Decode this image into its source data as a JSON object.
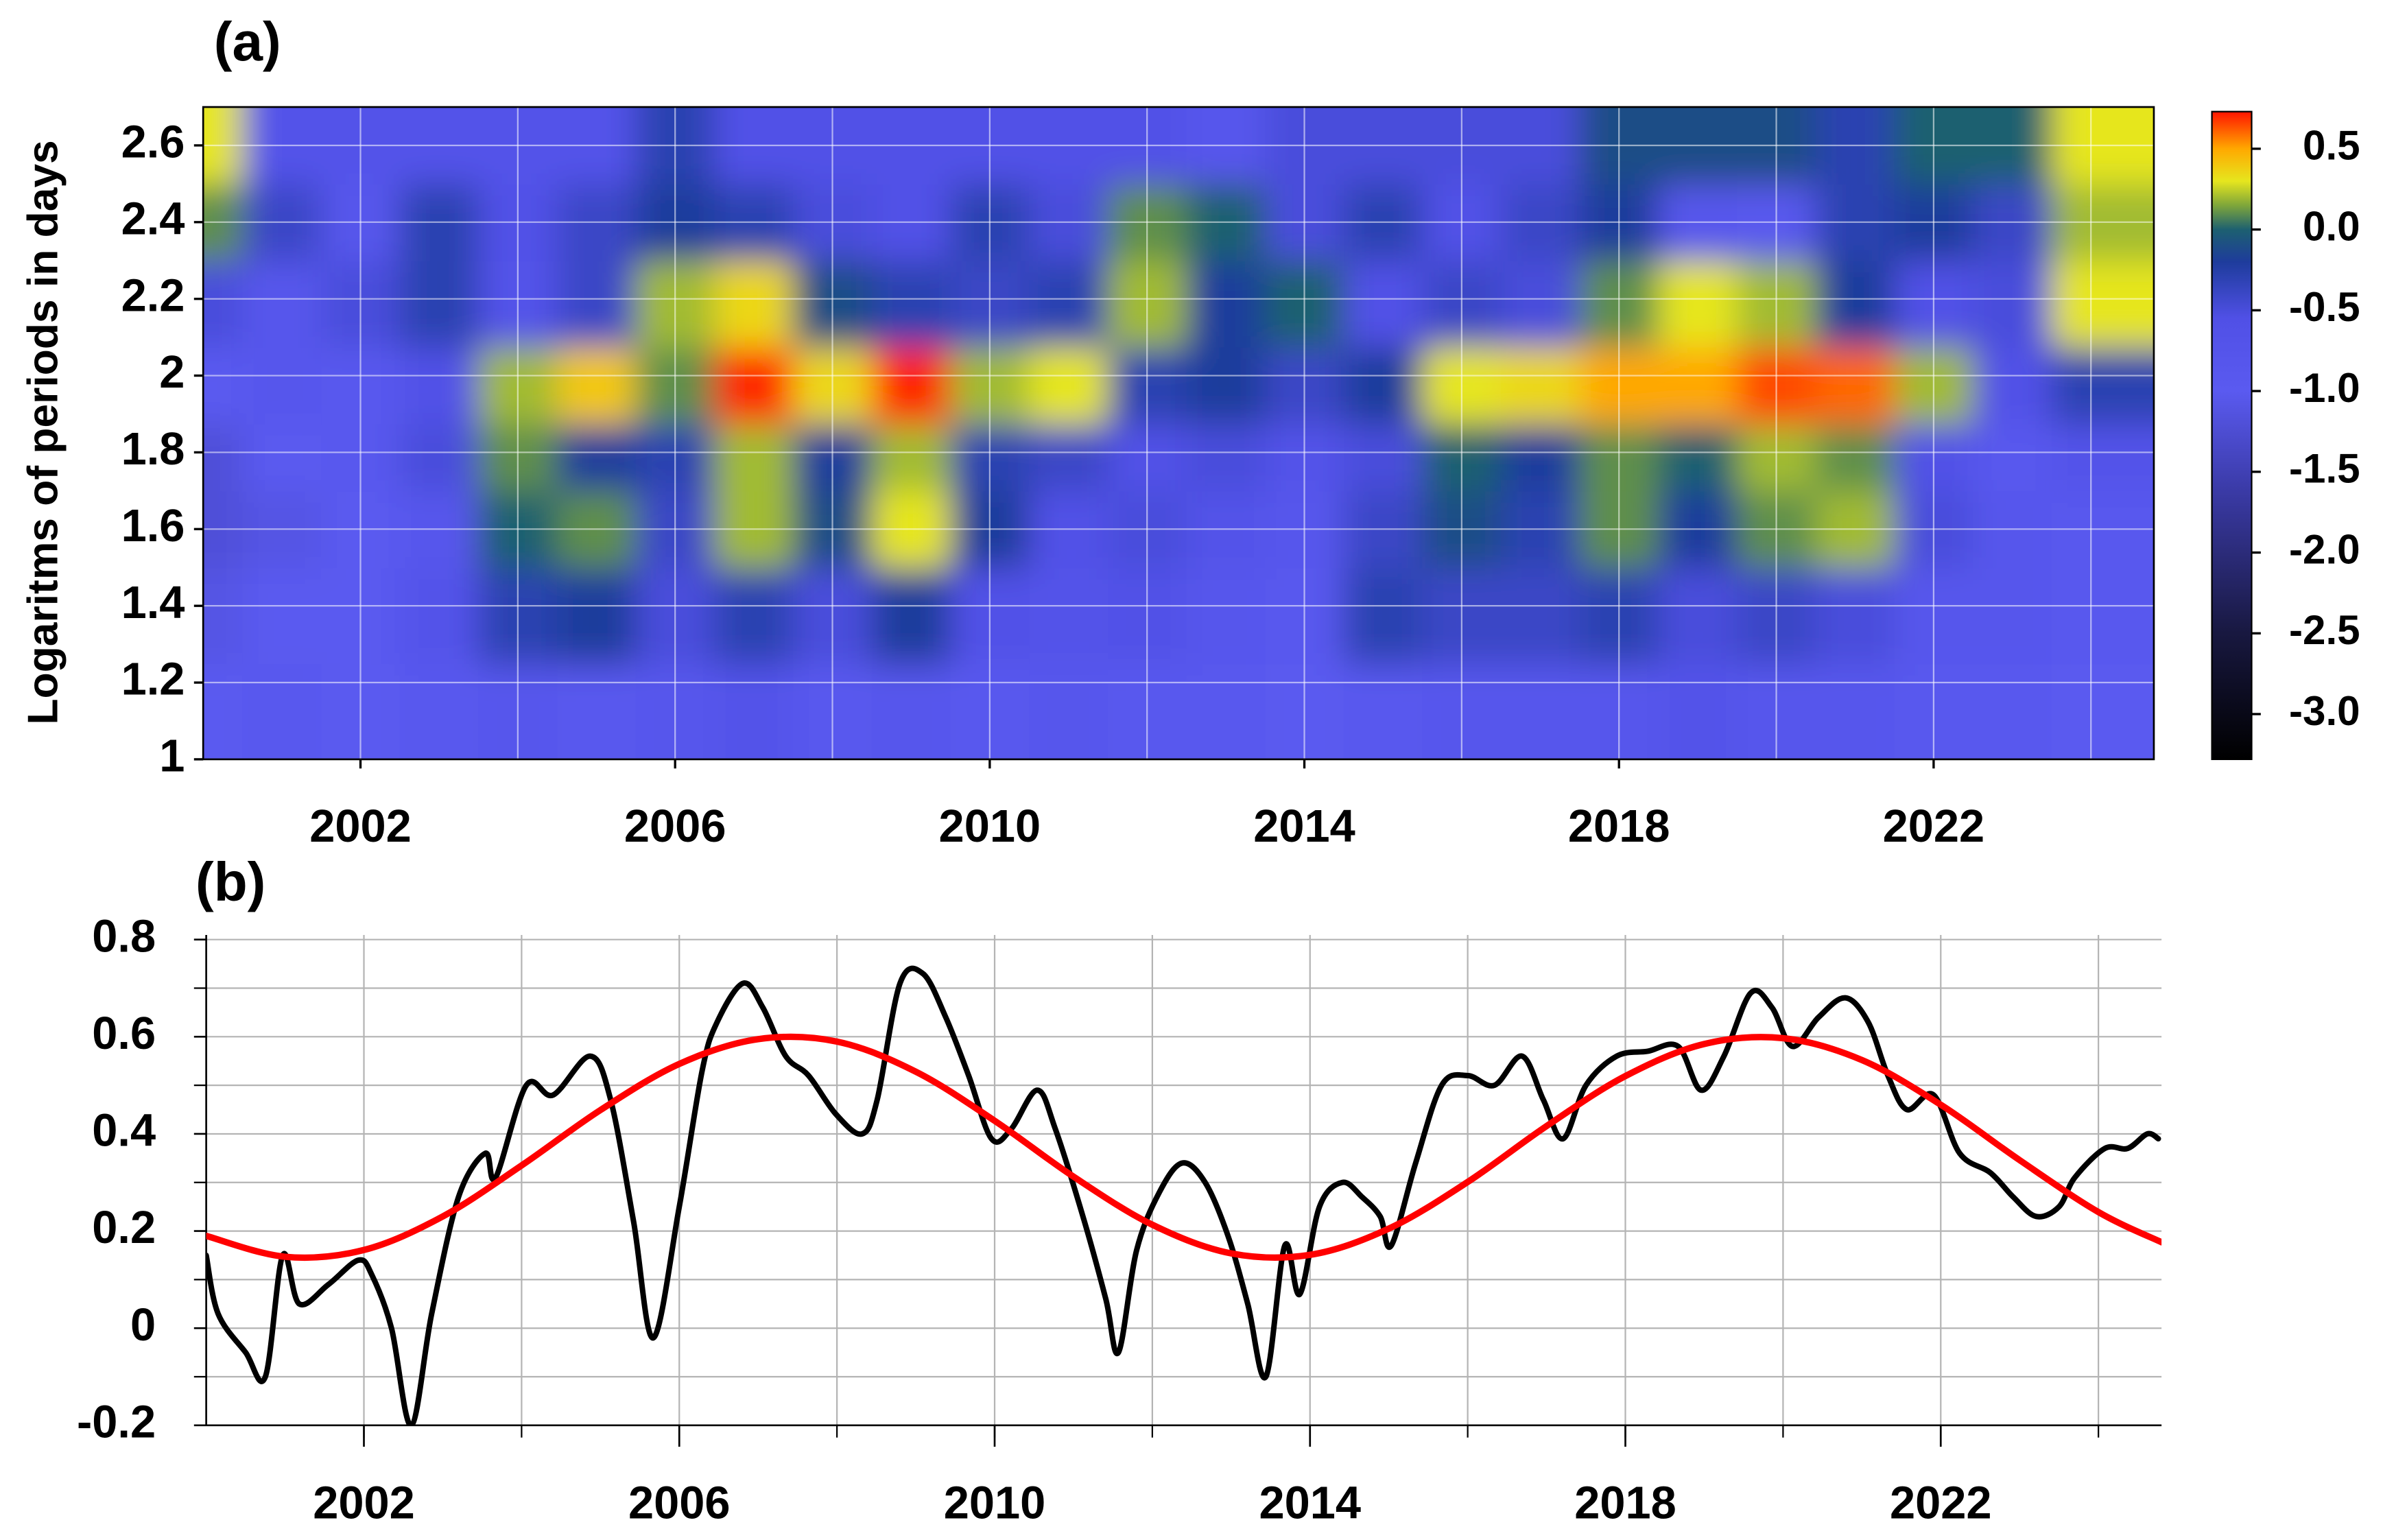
{
  "chart_data": [
    {
      "type": "heatmap",
      "title": "(a)",
      "y_label": "Logaritms of periods in days",
      "x": [
        2000,
        2001,
        2002,
        2003,
        2004,
        2005,
        2006,
        2007,
        2008,
        2009,
        2010,
        2011,
        2012,
        2013,
        2014,
        2015,
        2016,
        2017,
        2018,
        2019,
        2020,
        2021,
        2022,
        2023,
        2024
      ],
      "y": [
        1.1,
        1.4,
        1.6,
        1.8,
        1.95,
        2.2,
        2.4,
        2.6
      ],
      "z": [
        [
          -1.0,
          -0.9,
          -1.0,
          -0.9,
          -0.8,
          -0.9,
          -0.8,
          -0.7,
          -0.9,
          -0.8,
          -0.9,
          -0.8,
          -0.9,
          -0.9,
          -1.0,
          -0.9,
          -0.8,
          -0.8,
          -0.8,
          -0.7,
          -0.8,
          -0.8,
          -0.9,
          -0.9,
          -1.0
        ],
        [
          -1.1,
          -1.0,
          -1.0,
          -0.7,
          -0.3,
          -0.2,
          -0.5,
          -0.3,
          -0.5,
          -0.2,
          -0.6,
          -0.7,
          -0.6,
          -0.8,
          -0.9,
          -0.3,
          -0.4,
          -0.4,
          -0.3,
          -0.5,
          -0.4,
          -0.5,
          -0.8,
          -0.8,
          -0.9
        ],
        [
          -1.2,
          -1.1,
          -1.0,
          -0.8,
          0.0,
          0.1,
          -0.4,
          0.2,
          -0.1,
          0.3,
          -0.2,
          -0.6,
          -0.5,
          -0.7,
          -0.8,
          -0.4,
          -0.1,
          -0.3,
          0.1,
          -0.2,
          0.1,
          0.2,
          -0.5,
          -0.8,
          -0.9
        ],
        [
          -1.2,
          -1.0,
          -0.9,
          -0.5,
          0.1,
          -0.2,
          -0.3,
          0.2,
          -0.2,
          0.2,
          -0.3,
          -0.4,
          -0.6,
          -0.5,
          -0.7,
          -0.5,
          0.0,
          -0.2,
          0.1,
          0.0,
          0.2,
          0.1,
          -0.6,
          -0.9,
          -0.7
        ],
        [
          -1.0,
          -0.8,
          -0.9,
          -0.6,
          0.2,
          0.4,
          0.1,
          0.7,
          0.35,
          0.7,
          0.2,
          0.3,
          -0.3,
          -0.2,
          -0.4,
          -0.2,
          0.3,
          0.35,
          0.5,
          0.5,
          0.65,
          0.6,
          0.2,
          -0.6,
          -0.3
        ],
        [
          -0.5,
          -0.8,
          -0.5,
          -0.3,
          -0.7,
          -0.4,
          0.2,
          0.35,
          -0.1,
          -0.3,
          -0.4,
          -0.3,
          0.2,
          -0.2,
          0.0,
          -0.6,
          -0.4,
          -0.5,
          0.1,
          0.3,
          0.2,
          -0.2,
          -0.6,
          -0.5,
          0.3
        ],
        [
          0.1,
          -0.4,
          -0.8,
          -0.3,
          -0.6,
          -0.4,
          -0.2,
          -0.3,
          -0.5,
          -0.6,
          -0.3,
          -0.5,
          0.1,
          0.0,
          -0.5,
          -0.3,
          -0.6,
          -0.4,
          -0.2,
          -0.8,
          -0.9,
          -0.3,
          -0.2,
          -0.4,
          0.2
        ],
        [
          0.3,
          -0.7,
          -0.7,
          -0.7,
          -0.7,
          -0.7,
          -0.3,
          -0.6,
          -0.6,
          -0.6,
          -0.6,
          -0.6,
          -0.6,
          -0.8,
          -0.5,
          -0.5,
          -0.5,
          -0.5,
          -0.1,
          -0.1,
          -0.1,
          -0.3,
          0.0,
          0.0,
          0.3
        ]
      ],
      "xlim": [
        2000,
        2024.8
      ],
      "ylim": [
        1,
        2.7
      ],
      "xticks": [
        2002,
        2006,
        2010,
        2014,
        2018,
        2022
      ],
      "yticks": [
        1,
        1.2,
        1.4,
        1.6,
        1.8,
        2,
        2.2,
        2.4,
        2.6
      ],
      "xgrid": [
        2002,
        2004,
        2006,
        2008,
        2010,
        2012,
        2014,
        2016,
        2018,
        2020,
        2022,
        2024
      ],
      "colorbar": {
        "lim": [
          -3.28,
          0.73
        ],
        "ticks": [
          0.5,
          {
            "value": 0,
            "label": "0.0"
          },
          -0.5,
          {
            "value": -1,
            "label": "-1.0"
          },
          -1.5,
          {
            "value": -2,
            "label": "-2.0"
          },
          -2.5,
          {
            "value": -3,
            "label": "-3.0"
          }
        ],
        "colorscale": [
          {
            "value": -3.28,
            "color": "#000000"
          },
          {
            "value": -2.5,
            "color": "#181840"
          },
          {
            "value": -1.6,
            "color": "#3b3ba8"
          },
          {
            "value": -1.0,
            "color": "#5a5af0"
          },
          {
            "value": -0.55,
            "color": "#5050e6"
          },
          {
            "value": -0.2,
            "color": "#1e3c9c"
          },
          {
            "value": 0.0,
            "color": "#1d6070"
          },
          {
            "value": 0.15,
            "color": "#7fa63a"
          },
          {
            "value": 0.3,
            "color": "#e6e61e"
          },
          {
            "value": 0.5,
            "color": "#ffa800"
          },
          {
            "value": 0.73,
            "color": "#ff1500"
          }
        ]
      }
    },
    {
      "type": "line",
      "title": "(b)",
      "xlim": [
        2000,
        2024.8
      ],
      "ylim": [
        -0.2,
        0.8
      ],
      "xticks": [
        2002,
        2006,
        2010,
        2014,
        2018,
        2022
      ],
      "yticks": [
        -0.2,
        0,
        0.2,
        0.4,
        0.6,
        0.8
      ],
      "xgrid": [
        2002,
        2004,
        2006,
        2008,
        2010,
        2012,
        2014,
        2016,
        2018,
        2020,
        2022,
        2024
      ],
      "ygrid": [
        -0.1,
        0.1,
        0.3,
        0.5,
        0.7
      ],
      "series": [
        {
          "color": "#000000",
          "x": [
            2000.0,
            2000.15,
            2000.5,
            2000.75,
            2000.97,
            2001.18,
            2001.55,
            2001.93,
            2002.1,
            2002.35,
            2002.6,
            2002.86,
            2003.2,
            2003.54,
            2003.67,
            2004.06,
            2004.4,
            2004.87,
            2005.13,
            2005.42,
            2005.67,
            2006.0,
            2006.29,
            2006.48,
            2006.81,
            2007.06,
            2007.35,
            2007.64,
            2007.99,
            2008.32,
            2008.51,
            2008.8,
            2009.09,
            2009.38,
            2009.67,
            2009.96,
            2010.21,
            2010.54,
            2010.77,
            2011.12,
            2011.41,
            2011.57,
            2011.8,
            2012.09,
            2012.38,
            2012.67,
            2012.96,
            2013.21,
            2013.44,
            2013.68,
            2013.87,
            2014.12,
            2014.41,
            2014.66,
            2014.89,
            2015.03,
            2015.34,
            2015.67,
            2016.0,
            2016.34,
            2016.69,
            2016.96,
            2017.21,
            2017.5,
            2017.89,
            2018.28,
            2018.67,
            2018.96,
            2019.25,
            2019.59,
            2019.86,
            2020.12,
            2020.45,
            2020.79,
            2021.08,
            2021.33,
            2021.57,
            2021.91,
            2022.24,
            2022.63,
            2022.92,
            2023.21,
            2023.5,
            2023.7,
            2024.08,
            2024.37,
            2024.62,
            2024.76
          ],
          "values": [
            0.15,
            0.03,
            -0.05,
            -0.1,
            0.15,
            0.05,
            0.09,
            0.14,
            0.11,
            0.0,
            -0.2,
            0.03,
            0.27,
            0.36,
            0.31,
            0.5,
            0.48,
            0.56,
            0.47,
            0.22,
            -0.02,
            0.25,
            0.53,
            0.63,
            0.71,
            0.66,
            0.56,
            0.52,
            0.44,
            0.4,
            0.47,
            0.71,
            0.73,
            0.64,
            0.52,
            0.39,
            0.41,
            0.49,
            0.41,
            0.23,
            0.06,
            -0.05,
            0.16,
            0.28,
            0.34,
            0.3,
            0.19,
            0.05,
            -0.1,
            0.17,
            0.07,
            0.25,
            0.3,
            0.27,
            0.23,
            0.17,
            0.34,
            0.5,
            0.52,
            0.5,
            0.56,
            0.47,
            0.39,
            0.5,
            0.56,
            0.57,
            0.58,
            0.49,
            0.56,
            0.69,
            0.66,
            0.58,
            0.64,
            0.68,
            0.63,
            0.52,
            0.45,
            0.48,
            0.36,
            0.32,
            0.27,
            0.23,
            0.25,
            0.31,
            0.37,
            0.37,
            0.4,
            0.39
          ]
        },
        {
          "color": "#ff0000",
          "x": [
            2000,
            2001,
            2002,
            2003,
            2004,
            2005,
            2006,
            2007,
            2008,
            2009,
            2010,
            2011,
            2012,
            2013,
            2014,
            2015,
            2016,
            2017,
            2018,
            2019,
            2020,
            2021,
            2022,
            2023,
            2024,
            2024.8
          ],
          "values": [
            0.19,
            0.147,
            0.161,
            0.23,
            0.335,
            0.449,
            0.544,
            0.595,
            0.59,
            0.528,
            0.427,
            0.312,
            0.213,
            0.154,
            0.151,
            0.205,
            0.301,
            0.416,
            0.519,
            0.585,
            0.597,
            0.552,
            0.46,
            0.346,
            0.239,
            0.177
          ]
        }
      ]
    }
  ]
}
